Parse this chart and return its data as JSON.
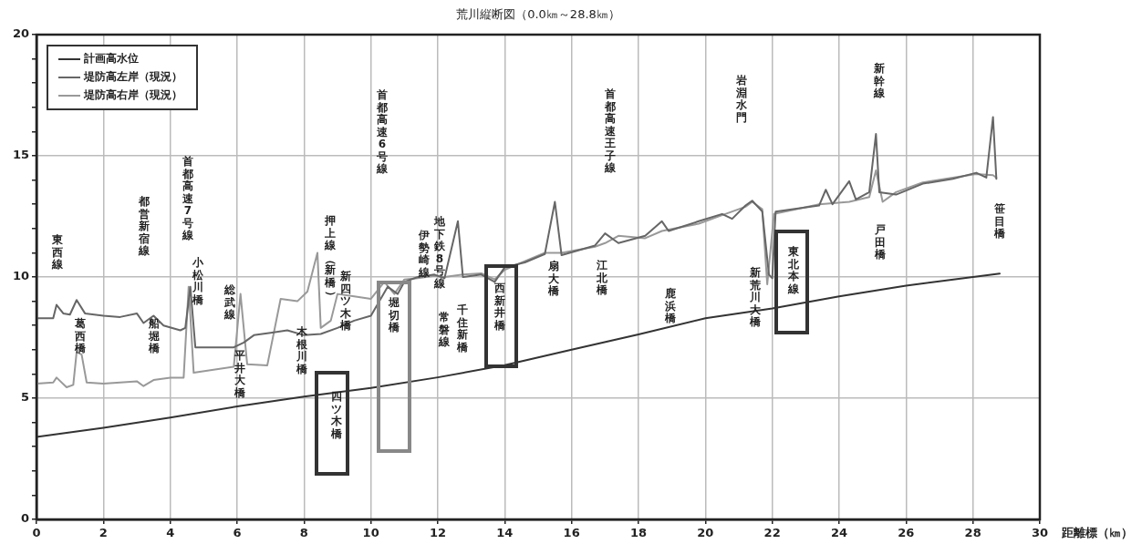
{
  "chart_data": {
    "type": "line",
    "title": "荒川縦断図（0.0㎞～28.8㎞）",
    "xlabel": "距離標（㎞）",
    "xlim": [
      0,
      30
    ],
    "xticks": [
      0,
      2,
      4,
      6,
      8,
      10,
      12,
      14,
      16,
      18,
      20,
      22,
      24,
      26,
      28,
      30
    ],
    "ylim": [
      0,
      20
    ],
    "yticks": [
      0,
      {
        "value": 1,
        "label": null
      },
      {
        "value": 2,
        "label": null
      },
      {
        "value": 3,
        "label": null
      },
      {
        "value": 4,
        "label": null
      },
      5,
      {
        "value": 6,
        "label": null
      },
      {
        "value": 7,
        "label": null
      },
      {
        "value": 8,
        "label": null
      },
      {
        "value": 9,
        "label": null
      },
      10,
      {
        "value": 11,
        "label": null
      },
      {
        "value": 12,
        "label": null
      },
      {
        "value": 13,
        "label": null
      },
      {
        "value": 14,
        "label": null
      },
      15,
      {
        "value": 16,
        "label": null
      },
      {
        "value": 17,
        "label": null
      },
      {
        "value": 18,
        "label": null
      },
      {
        "value": 19,
        "label": null
      },
      20
    ],
    "grid": true,
    "legend": "top left",
    "marker": "none",
    "line_style": "solid",
    "series": [
      {
        "name": "計画高水位",
        "color": "#333333",
        "x": [
          0,
          2,
          4,
          6,
          8,
          10,
          12,
          14,
          16,
          18,
          20,
          22,
          24,
          26,
          28,
          28.8
        ],
        "values": [
          3.4,
          3.78,
          4.2,
          4.66,
          5.07,
          5.42,
          5.86,
          6.36,
          7.0,
          7.63,
          8.3,
          8.7,
          9.2,
          9.64,
          10.0,
          10.14
        ]
      },
      {
        "name": "堤防高左岸（現況）",
        "color": "#666666",
        "x": [
          0,
          0.5,
          0.6,
          0.8,
          1.0,
          1.2,
          1.45,
          2,
          2.5,
          3.0,
          3.2,
          3.5,
          3.8,
          4.3,
          4.45,
          4.6,
          4.75,
          5.9,
          6.2,
          6.5,
          7.0,
          7.5,
          8.0,
          8.5,
          9.0,
          9.5,
          10,
          10.5,
          10.8,
          11.0,
          11.4,
          11.9,
          12.2,
          12.6,
          12.75,
          13.3,
          13.7,
          14.0,
          14.6,
          15.2,
          15.5,
          15.7,
          16.7,
          17.0,
          17.4,
          18.2,
          18.7,
          18.9,
          19.8,
          20.5,
          20.8,
          21.2,
          21.4,
          21.7,
          21.9,
          22.0,
          22.1,
          23.4,
          23.6,
          23.8,
          24.3,
          24.5,
          24.9,
          25.1,
          25.2,
          25.7,
          26.5,
          27.4,
          28.1,
          28.4,
          28.6,
          28.7
        ],
        "values": [
          8.3,
          8.3,
          8.85,
          8.5,
          8.45,
          9.05,
          8.5,
          8.4,
          8.35,
          8.5,
          8.1,
          8.4,
          8.0,
          7.8,
          7.9,
          9.6,
          7.1,
          7.1,
          7.3,
          7.6,
          7.7,
          7.8,
          7.6,
          7.65,
          7.9,
          8.2,
          8.4,
          9.6,
          9.3,
          9.8,
          10.0,
          10.1,
          9.95,
          12.3,
          10.0,
          10.1,
          9.8,
          10.4,
          10.6,
          10.95,
          13.1,
          10.9,
          11.3,
          11.8,
          11.4,
          11.7,
          12.3,
          11.9,
          12.3,
          12.6,
          12.4,
          12.95,
          13.15,
          12.7,
          10.1,
          9.95,
          12.7,
          12.95,
          13.6,
          13.0,
          13.95,
          13.2,
          13.5,
          15.9,
          13.5,
          13.4,
          13.85,
          14.05,
          14.3,
          14.1,
          16.6,
          14.05
        ]
      },
      {
        "name": "堤防高右岸（現況）",
        "color": "#999999",
        "x": [
          0,
          0.5,
          0.6,
          0.9,
          1.1,
          1.2,
          1.35,
          1.5,
          2,
          3.0,
          3.2,
          3.5,
          4.0,
          4.4,
          4.55,
          4.7,
          5.9,
          6.1,
          6.3,
          6.9,
          7.3,
          7.8,
          8.1,
          8.4,
          8.5,
          8.8,
          9.0,
          9.5,
          10,
          10.4,
          10.7,
          11.0,
          11.4,
          11.9,
          12.2,
          12.75,
          13.3,
          13.7,
          14.0,
          14.6,
          15.2,
          15.7,
          16.7,
          17.0,
          17.4,
          18.2,
          18.7,
          19.8,
          20.5,
          21.2,
          21.4,
          21.7,
          21.85,
          22.05,
          23.4,
          24.3,
          24.9,
          25.1,
          25.3,
          25.7,
          26.5,
          27.4,
          28.1,
          28.6,
          28.7
        ],
        "values": [
          5.6,
          5.65,
          5.85,
          5.45,
          5.55,
          6.9,
          6.8,
          5.65,
          5.6,
          5.7,
          5.5,
          5.75,
          5.85,
          5.85,
          9.6,
          6.05,
          6.3,
          9.3,
          6.4,
          6.35,
          9.1,
          9.0,
          9.4,
          11.0,
          7.9,
          8.2,
          9.3,
          9.2,
          9.1,
          9.8,
          9.3,
          9.9,
          9.95,
          10.05,
          10.0,
          10.1,
          10.15,
          9.9,
          10.3,
          10.65,
          11.0,
          11.0,
          11.25,
          11.4,
          11.7,
          11.6,
          11.9,
          12.2,
          12.55,
          12.9,
          13.1,
          12.8,
          9.7,
          12.6,
          13.0,
          13.1,
          13.3,
          14.4,
          13.1,
          13.5,
          13.9,
          14.1,
          14.25,
          14.2,
          14.1
        ]
      }
    ],
    "annotations": [
      "東西線",
      "葛西橋",
      "都営新宿線",
      "船堀橋",
      "首都高速7号線",
      "小松川橋",
      "総武線",
      "平井大橋",
      "押上線（新橋）",
      "木根川橋",
      "新四ツ木橋",
      "四ツ木橋",
      "首都高速6号線",
      "堀切橋",
      "伊勢崎線",
      "地下鉄8号線",
      "常磐線",
      "千住新橋",
      "西新井橋",
      "扇大橋",
      "首都高速王子線",
      "江北橋",
      "鹿浜橋",
      "岩淵水門",
      "新荒川大橋",
      "東北本線",
      "新幹線",
      "戸田橋",
      "笹目橋"
    ]
  }
}
